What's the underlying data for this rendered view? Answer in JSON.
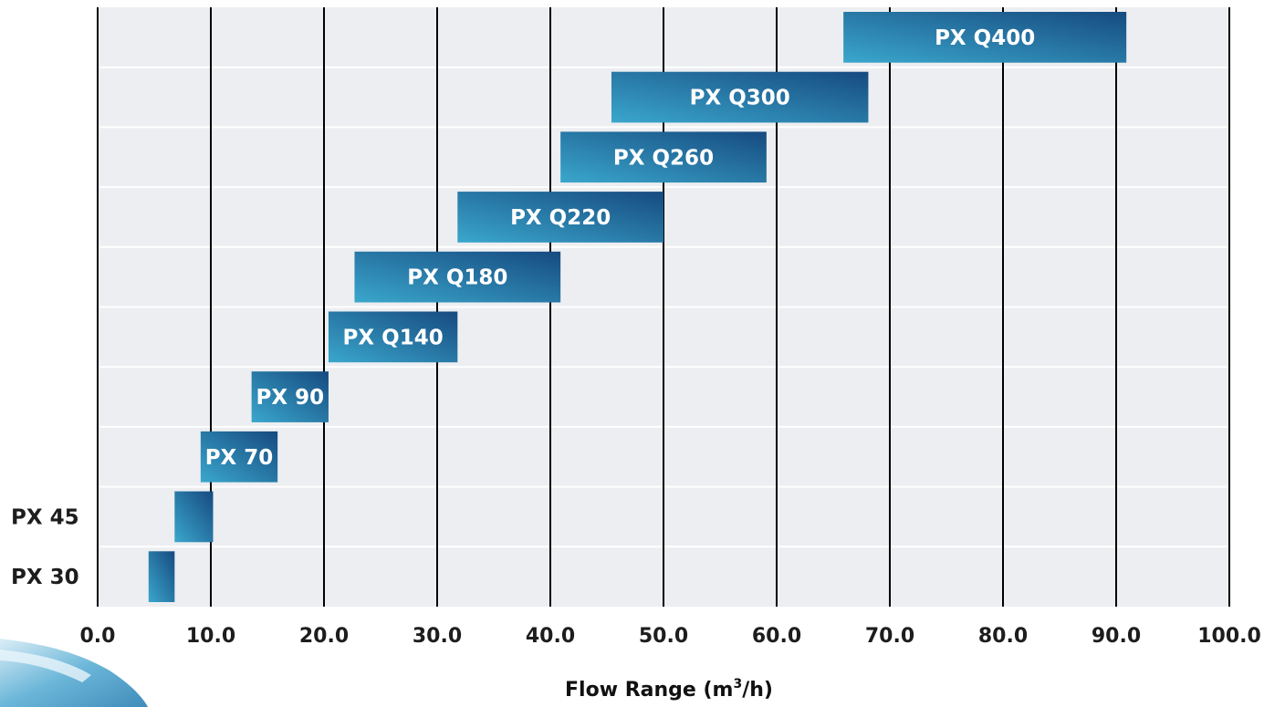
{
  "chart_data": {
    "type": "bar",
    "orientation": "horizontal-range",
    "xlabel": "Flow Range (m³/h)",
    "xlabel_main": "Flow Range (m",
    "xlabel_sup": "3",
    "xlabel_tail": "/h)",
    "xlim": [
      0,
      100
    ],
    "xticks": [
      "0.0",
      "10.0",
      "20.0",
      "30.0",
      "40.0",
      "50.0",
      "60.0",
      "70.0",
      "80.0",
      "90.0",
      "100.0"
    ],
    "grid": true,
    "series": [
      {
        "name": "PX 30",
        "min": 4.5,
        "max": 6.8,
        "label_position": "left"
      },
      {
        "name": "PX 45",
        "min": 6.8,
        "max": 10.2,
        "label_position": "left"
      },
      {
        "name": "PX 70",
        "min": 9.1,
        "max": 15.9,
        "label_position": "inside"
      },
      {
        "name": "PX 90",
        "min": 13.6,
        "max": 20.4,
        "label_position": "inside"
      },
      {
        "name": "PX Q140",
        "min": 20.4,
        "max": 31.8,
        "label_position": "inside"
      },
      {
        "name": "PX Q180",
        "min": 22.7,
        "max": 40.9,
        "label_position": "inside"
      },
      {
        "name": "PX Q220",
        "min": 31.8,
        "max": 50.0,
        "label_position": "inside"
      },
      {
        "name": "PX Q260",
        "min": 40.9,
        "max": 59.1,
        "label_position": "inside"
      },
      {
        "name": "PX Q300",
        "min": 45.4,
        "max": 68.1,
        "label_position": "inside"
      },
      {
        "name": "PX Q400",
        "min": 65.9,
        "max": 90.9,
        "label_position": "inside"
      }
    ],
    "colors": {
      "plot_background": "#eceef1",
      "row_divider": "#ffffff",
      "gridline": "#000000",
      "bar_light": "#3aa3c9",
      "bar_dark": "#154b80",
      "bar_label": "#ffffff"
    }
  }
}
